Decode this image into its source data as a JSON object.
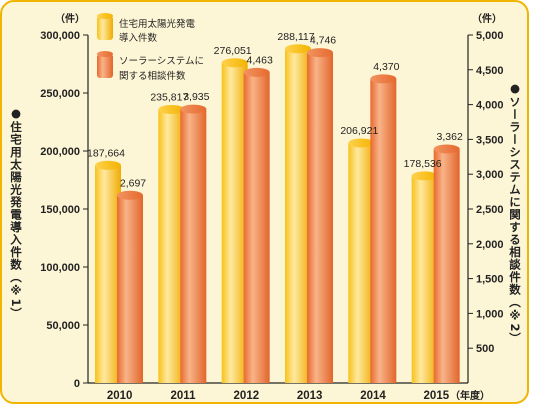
{
  "chart_data": {
    "type": "bar",
    "categories": [
      "2010",
      "2011",
      "2012",
      "2013",
      "2014",
      "2015"
    ],
    "x_unit": "（年度）",
    "series": [
      {
        "name": "住宅用太陽光発電導入件数",
        "legend_lines": [
          "住宅用太陽光発電",
          "導入件数"
        ],
        "axis": "left",
        "color": "#f5b800",
        "values": [
          187664,
          235817,
          276051,
          288117,
          206921,
          178536
        ],
        "labels": [
          "187,664",
          "235,817",
          "276,051",
          "288,117",
          "206,921",
          "178,536"
        ]
      },
      {
        "name": "ソーラーシステムに関する相談件数",
        "legend_lines": [
          "ソーラーシステムに",
          "関する相談件数"
        ],
        "axis": "right",
        "color": "#ea7b3c",
        "values": [
          2697,
          3935,
          4463,
          4746,
          4370,
          3362
        ],
        "labels": [
          "2,697",
          "3,935",
          "4,463",
          "4,746",
          "4,370",
          "3,362"
        ]
      }
    ],
    "y_left": {
      "title": "●住宅用太陽光発電導入件数（※1）",
      "unit": "（件）",
      "lim": [
        0,
        300000
      ],
      "ticks": [
        0,
        50000,
        100000,
        150000,
        200000,
        250000,
        300000
      ],
      "tick_labels": [
        "0",
        "50,000",
        "100,000",
        "150,000",
        "200,000",
        "250,000",
        "300,000"
      ]
    },
    "y_right": {
      "title": "●ソーラーシステムに関する相談件数（※2）",
      "unit": "（件）",
      "lim": [
        0,
        5000
      ],
      "ticks": [
        500,
        1000,
        1500,
        2000,
        2500,
        3000,
        3500,
        4000,
        4500,
        5000
      ],
      "tick_labels": [
        "500",
        "1,000",
        "1,500",
        "2,000",
        "2,500",
        "3,000",
        "3,500",
        "4,000",
        "4,500",
        "5,000"
      ]
    },
    "grid": false,
    "legend_position": "top-left"
  }
}
